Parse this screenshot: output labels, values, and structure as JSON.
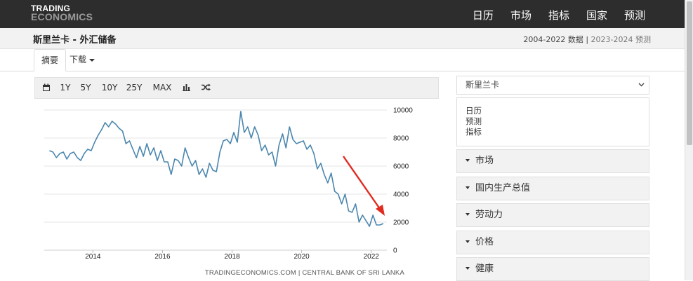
{
  "header": {
    "logo_line1": "TRADING",
    "logo_line2": "ECONOMICS",
    "nav": [
      "日历",
      "市场",
      "指标",
      "国家",
      "预测"
    ]
  },
  "subheader": {
    "title": "斯里兰卡 - 外汇储备",
    "range_data": "2004-2022 数据",
    "separator": " | ",
    "range_forecast": "2023-2024 预测"
  },
  "tabs": {
    "summary": "摘要",
    "download": "下载"
  },
  "toolbar": {
    "calendar_icon": "calendar-icon",
    "ranges": [
      "1Y",
      "5Y",
      "10Y",
      "25Y",
      "MAX"
    ],
    "bar_icon": "bar-chart-icon",
    "compare_icon": "shuffle-icon"
  },
  "sidebar": {
    "select_label": "斯里兰卡",
    "links": [
      "日历",
      "预测",
      "指标"
    ],
    "accordion": [
      "市场",
      "国内生产总值",
      "劳动力",
      "价格",
      "健康"
    ]
  },
  "colors": {
    "line": "#4a86ae",
    "arrow": "#e02b20",
    "topbar": "#2d2d2d"
  },
  "chart_data": {
    "type": "line",
    "title": "",
    "xlabel": "",
    "ylabel": "",
    "source": "TRADINGECONOMICS.COM  |  CENTRAL BANK OF SRI LANKA",
    "x_ticks": [
      "2014",
      "2016",
      "2018",
      "2020",
      "2022"
    ],
    "y_ticks": [
      "10000",
      "8000",
      "6000",
      "4000",
      "2000",
      "0"
    ],
    "ylim": [
      0,
      10000
    ],
    "xlim": [
      2012.6,
      2022.45
    ],
    "grid": true,
    "y_axis_side": "right",
    "annotation": "red arrow pointing down toward the 2022 decline",
    "series": [
      {
        "x": [
          2012.75,
          2012.85,
          2012.95,
          2013.05,
          2013.15,
          2013.25,
          2013.35,
          2013.45,
          2013.55,
          2013.65,
          2013.75,
          2013.85,
          2013.95,
          2014.05,
          2014.15,
          2014.25,
          2014.35,
          2014.45,
          2014.55,
          2014.65,
          2014.75,
          2014.85,
          2014.95,
          2015.05,
          2015.15,
          2015.25,
          2015.35,
          2015.45,
          2015.55,
          2015.65,
          2015.75,
          2015.85,
          2015.95,
          2016.05,
          2016.15,
          2016.25,
          2016.35,
          2016.45,
          2016.55,
          2016.65,
          2016.75,
          2016.85,
          2016.95,
          2017.05,
          2017.15,
          2017.25,
          2017.35,
          2017.45,
          2017.55,
          2017.65,
          2017.75,
          2017.85,
          2017.95,
          2018.05,
          2018.15,
          2018.25,
          2018.35,
          2018.45,
          2018.55,
          2018.65,
          2018.75,
          2018.85,
          2018.95,
          2019.05,
          2019.15,
          2019.25,
          2019.35,
          2019.45,
          2019.55,
          2019.65,
          2019.75,
          2019.85,
          2019.95,
          2020.05,
          2020.15,
          2020.25,
          2020.35,
          2020.45,
          2020.55,
          2020.65,
          2020.75,
          2020.85,
          2020.95,
          2021.05,
          2021.15,
          2021.25,
          2021.35,
          2021.45,
          2021.55,
          2021.65,
          2021.75,
          2021.85,
          2021.95,
          2022.05,
          2022.15,
          2022.25,
          2022.35
        ],
        "y": [
          7100,
          7000,
          6600,
          6900,
          7000,
          6500,
          6900,
          7000,
          6600,
          6400,
          6900,
          7200,
          7100,
          7700,
          8200,
          8600,
          9100,
          8800,
          9200,
          9000,
          8700,
          8500,
          7600,
          7800,
          7200,
          6600,
          7400,
          6700,
          7600,
          6800,
          7300,
          6400,
          7100,
          6300,
          6300,
          5400,
          6500,
          6400,
          6000,
          7300,
          6600,
          6000,
          6400,
          5400,
          5800,
          5200,
          6200,
          5700,
          5600,
          7000,
          7800,
          7900,
          7600,
          8400,
          7700,
          9900,
          8400,
          8800,
          8000,
          8800,
          8200,
          7100,
          7500,
          6800,
          7000,
          6000,
          7500,
          8300,
          7300,
          8800,
          7900,
          7600,
          7700,
          7800,
          7200,
          7500,
          6900,
          5800,
          6200,
          5400,
          4800,
          5500,
          4200,
          4000,
          3300,
          4000,
          2800,
          2700,
          3300,
          2000,
          2500,
          2100,
          1700,
          2500,
          1800,
          1800,
          1900
        ],
        "color": "#4a86ae"
      }
    ]
  }
}
